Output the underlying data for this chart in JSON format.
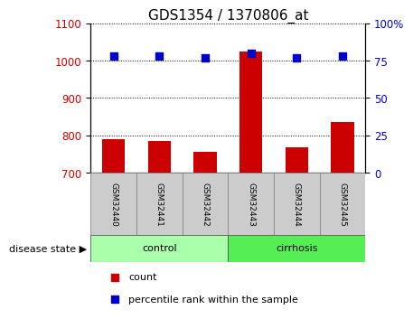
{
  "title": "GDS1354 / 1370806_at",
  "categories": [
    "GSM32440",
    "GSM32441",
    "GSM32442",
    "GSM32443",
    "GSM32444",
    "GSM32445"
  ],
  "bar_values": [
    790,
    785,
    755,
    1025,
    768,
    835
  ],
  "bar_baseline": 700,
  "percentile_values": [
    78,
    78,
    77,
    80,
    77,
    78
  ],
  "bar_color": "#cc0000",
  "dot_color": "#0000cc",
  "left_ylim": [
    700,
    1100
  ],
  "left_yticks": [
    700,
    800,
    900,
    1000,
    1100
  ],
  "right_ylim": [
    0,
    100
  ],
  "right_yticks": [
    0,
    25,
    50,
    75,
    100
  ],
  "right_yticklabels": [
    "0",
    "25",
    "50",
    "75",
    "100%"
  ],
  "groups": [
    {
      "label": "control",
      "indices": [
        0,
        1,
        2
      ],
      "color": "#aaffaa"
    },
    {
      "label": "cirrhosis",
      "indices": [
        3,
        4,
        5
      ],
      "color": "#55ee55"
    }
  ],
  "disease_state_label": "disease state",
  "legend_items": [
    {
      "label": "count",
      "color": "#cc0000"
    },
    {
      "label": "percentile rank within the sample",
      "color": "#0000cc"
    }
  ],
  "grid_color": "#000000",
  "background_color": "#ffffff",
  "tick_label_color_left": "#cc0000",
  "tick_label_color_right": "#0000cc",
  "title_fontsize": 11,
  "axis_fontsize": 8.5,
  "label_fontsize": 8
}
